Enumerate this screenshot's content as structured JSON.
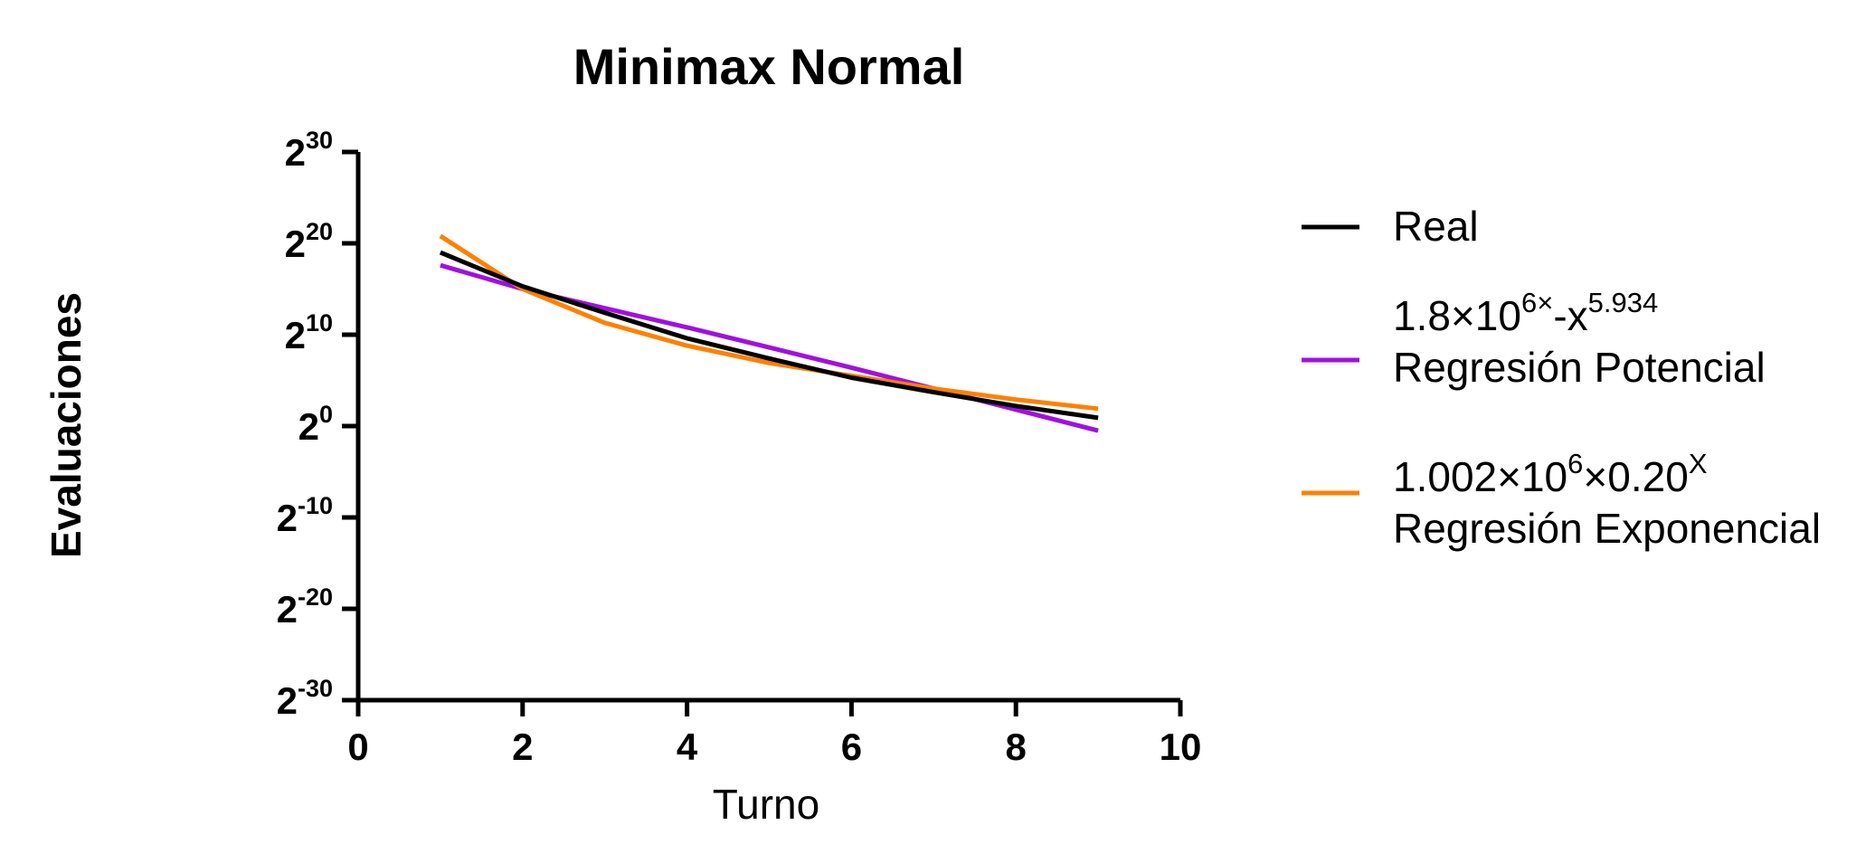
{
  "chart_data": {
    "type": "line",
    "title": "Minimax Normal",
    "xlabel": "Turno",
    "ylabel": "Evaluaciones",
    "xlim": [
      0,
      10
    ],
    "xticks": [
      "0",
      "2",
      "4",
      "6",
      "8",
      "10"
    ],
    "ylim_log2": [
      -30,
      30
    ],
    "yscale": "log2",
    "ytick_base": "2",
    "ytick_exponents": [
      "30",
      "20",
      "10",
      "0",
      "-10",
      "-20",
      "-30"
    ],
    "grid": false,
    "legend_position": "right",
    "series": [
      {
        "name": "Real",
        "color": "#000000",
        "x": [
          1,
          2,
          3,
          4,
          5,
          6,
          7,
          8,
          9
        ],
        "y_log2": [
          19.0,
          15.3,
          12.4,
          9.6,
          7.4,
          5.3,
          3.7,
          2.2,
          0.9
        ]
      },
      {
        "name_lines": [
          "1.8×10",
          "6×",
          "-x",
          "5.934",
          "Regresión Potencial"
        ],
        "color": "#a010e0",
        "x": [
          1,
          2,
          3,
          4,
          5,
          6,
          7,
          8,
          9
        ],
        "y_log2": [
          17.6,
          15.0,
          12.9,
          10.8,
          8.6,
          6.4,
          4.1,
          1.8,
          -0.5
        ]
      },
      {
        "name_lines": [
          "1.002×10",
          "6",
          "×0.20",
          "X",
          "Regresión Exponencial"
        ],
        "color": "#ff8000",
        "x": [
          1,
          2,
          3,
          4,
          5,
          6,
          7,
          8,
          9
        ],
        "y_log2": [
          20.8,
          15.0,
          11.3,
          8.8,
          6.9,
          5.5,
          4.1,
          2.9,
          1.9
        ]
      }
    ]
  }
}
